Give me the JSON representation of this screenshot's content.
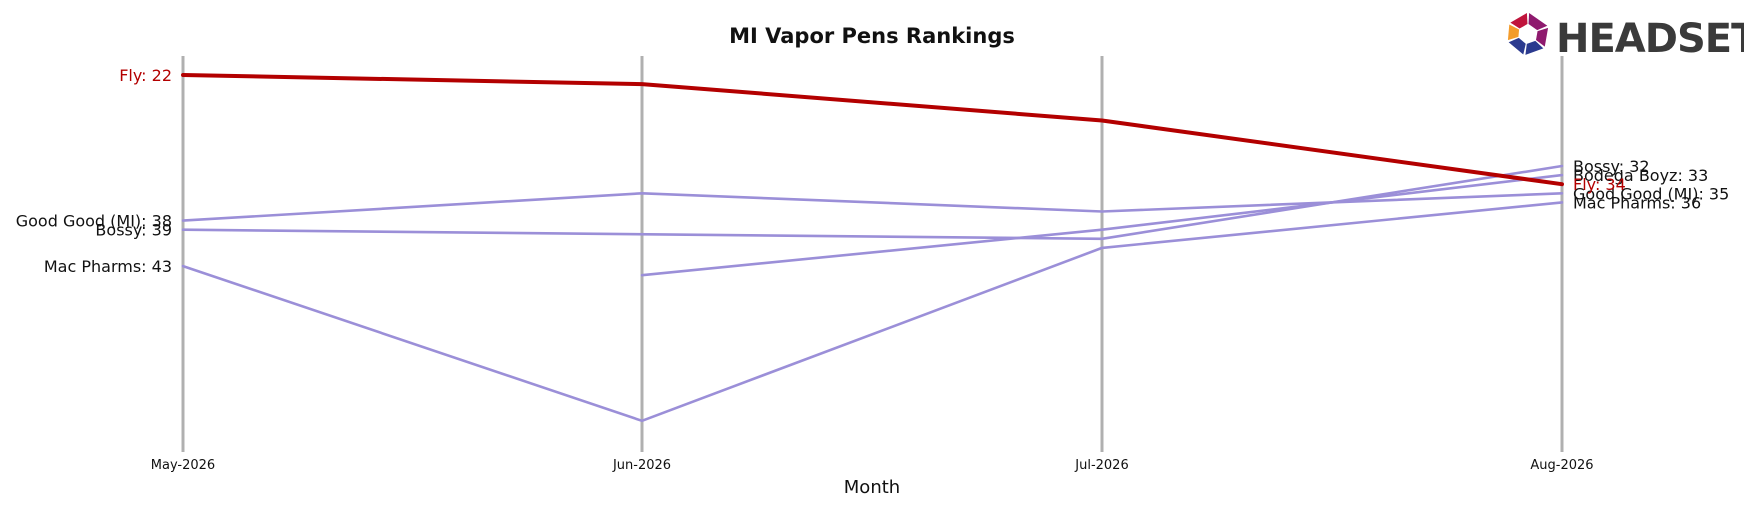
{
  "chart_data": {
    "type": "line",
    "title": "MI Vapor Pens Rankings",
    "xlabel": "Month",
    "ylabel": "",
    "categories": [
      "May-2026",
      "Jun-2026",
      "Jul-2026",
      "Aug-2026"
    ],
    "y_inverted": true,
    "grid": "vertical lines at each month",
    "legend": "none; series labelled at line ends",
    "series": [
      {
        "name": "Fly",
        "values": [
          22,
          23,
          27,
          34
        ],
        "color": "#b30000",
        "highlight": true
      },
      {
        "name": "Good Good (MI)",
        "values": [
          38,
          35,
          37,
          35
        ],
        "color": "#9b8fd8",
        "highlight": false
      },
      {
        "name": "Bossy",
        "values": [
          39,
          null,
          40,
          32
        ],
        "color": "#9b8fd8",
        "highlight": false
      },
      {
        "name": "Mac Pharms",
        "values": [
          43,
          60,
          41,
          36
        ],
        "color": "#9b8fd8",
        "highlight": false
      },
      {
        "name": "Bodega Boyz",
        "values": [
          null,
          44,
          39,
          33
        ],
        "color": "#9b8fd8",
        "highlight": false
      }
    ]
  },
  "logo": {
    "text": "HEADSET",
    "colors": [
      "#e8542f",
      "#c0143c",
      "#8e1a6e",
      "#2b3a8f",
      "#f39c2c"
    ]
  }
}
